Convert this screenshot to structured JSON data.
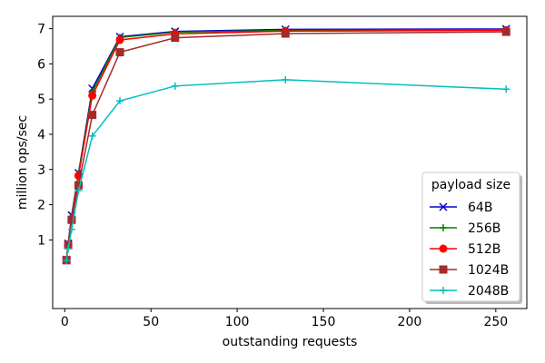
{
  "chart_data": {
    "type": "line",
    "xlabel": "outstanding requests",
    "ylabel": "million ops/sec",
    "xlim": [
      -7,
      268
    ],
    "ylim": [
      -0.95,
      7.35
    ],
    "xticks": [
      0,
      50,
      100,
      150,
      200,
      250
    ],
    "yticks": [
      1,
      2,
      3,
      4,
      5,
      6,
      7
    ],
    "grid": false,
    "legend": {
      "title": "payload size",
      "placement": "lower-right"
    },
    "x": [
      1,
      2,
      4,
      8,
      16,
      32,
      64,
      128,
      256
    ],
    "series": [
      {
        "name": "64B",
        "color": "#0000cc",
        "marker": "x",
        "values": [
          0.44,
          0.9,
          1.7,
          2.9,
          5.3,
          6.77,
          6.92,
          6.98,
          6.99
        ]
      },
      {
        "name": "256B",
        "color": "#008000",
        "marker": "plus",
        "values": [
          0.44,
          0.88,
          1.65,
          2.88,
          5.2,
          6.75,
          6.9,
          6.95,
          6.97
        ]
      },
      {
        "name": "512B",
        "color": "#ff0000",
        "marker": "circle",
        "values": [
          0.44,
          0.87,
          1.6,
          2.82,
          5.1,
          6.68,
          6.85,
          6.93,
          6.95
        ]
      },
      {
        "name": "1024B",
        "color": "#a52a2a",
        "marker": "square",
        "values": [
          0.42,
          0.85,
          1.57,
          2.55,
          4.55,
          6.33,
          6.74,
          6.86,
          6.91
        ]
      },
      {
        "name": "2048B",
        "color": "#00bfbf",
        "marker": "plus",
        "values": [
          0.42,
          0.75,
          1.3,
          2.4,
          3.95,
          4.95,
          5.37,
          5.55,
          5.28
        ]
      }
    ]
  }
}
